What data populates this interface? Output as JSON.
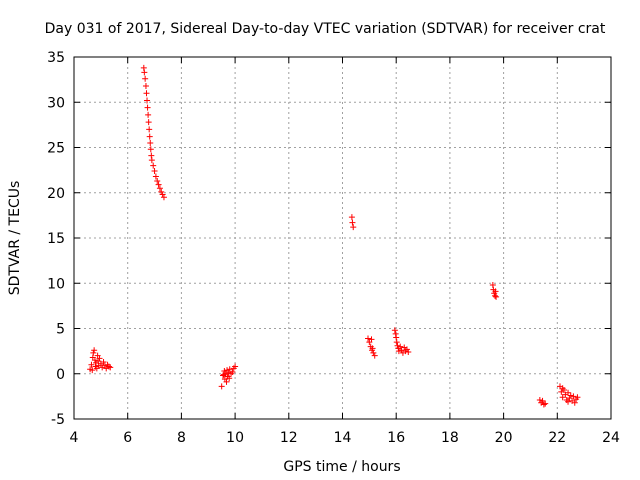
{
  "chart_data": {
    "type": "scatter",
    "title": "Day 031 of 2017, Sidereal Day-to-day VTEC variation (SDTVAR) for receiver crat",
    "xlabel": "GPS time / hours",
    "ylabel": "SDTVAR / TECUs",
    "xlim": [
      4,
      24
    ],
    "ylim": [
      -5,
      35
    ],
    "xticks": [
      4,
      6,
      8,
      10,
      12,
      14,
      16,
      18,
      20,
      22,
      24
    ],
    "yticks": [
      -5,
      0,
      5,
      10,
      15,
      20,
      25,
      30,
      35
    ],
    "grid": true,
    "marker": "+",
    "color": "#ff0000",
    "series": [
      {
        "name": "SDTVAR",
        "points": [
          [
            4.6,
            0.5
          ],
          [
            4.65,
            1.0
          ],
          [
            4.7,
            1.8
          ],
          [
            4.72,
            2.3
          ],
          [
            4.75,
            2.6
          ],
          [
            4.78,
            1.5
          ],
          [
            4.8,
            0.8
          ],
          [
            4.82,
            1.2
          ],
          [
            4.85,
            0.6
          ],
          [
            4.88,
            2.0
          ],
          [
            4.9,
            1.4
          ],
          [
            4.92,
            0.9
          ],
          [
            4.95,
            1.7
          ],
          [
            5.0,
            1.1
          ],
          [
            5.05,
            0.7
          ],
          [
            5.1,
            1.3
          ],
          [
            5.15,
            0.9
          ],
          [
            5.2,
            0.6
          ],
          [
            5.25,
            1.0
          ],
          [
            5.3,
            0.8
          ],
          [
            5.35,
            0.7
          ],
          [
            4.68,
            0.4
          ],
          [
            6.6,
            33.8
          ],
          [
            6.62,
            33.3
          ],
          [
            6.65,
            32.6
          ],
          [
            6.68,
            31.8
          ],
          [
            6.7,
            31.0
          ],
          [
            6.72,
            30.2
          ],
          [
            6.74,
            29.4
          ],
          [
            6.76,
            28.6
          ],
          [
            6.78,
            27.8
          ],
          [
            6.8,
            27.0
          ],
          [
            6.82,
            26.2
          ],
          [
            6.84,
            25.5
          ],
          [
            6.86,
            24.8
          ],
          [
            6.88,
            24.1
          ],
          [
            6.9,
            23.6
          ],
          [
            6.95,
            23.0
          ],
          [
            7.0,
            22.4
          ],
          [
            7.05,
            21.8
          ],
          [
            7.1,
            21.3
          ],
          [
            7.15,
            20.9
          ],
          [
            7.2,
            20.5
          ],
          [
            7.25,
            20.1
          ],
          [
            7.3,
            19.8
          ],
          [
            7.35,
            19.5
          ],
          [
            9.5,
            -1.4
          ],
          [
            9.55,
            -0.2
          ],
          [
            9.6,
            0.3
          ],
          [
            9.62,
            -0.6
          ],
          [
            9.65,
            0.0
          ],
          [
            9.68,
            -0.9
          ],
          [
            9.7,
            0.4
          ],
          [
            9.72,
            -0.3
          ],
          [
            9.75,
            0.1
          ],
          [
            9.78,
            -0.5
          ],
          [
            9.8,
            0.5
          ],
          [
            9.85,
            0.0
          ],
          [
            9.9,
            0.2
          ],
          [
            9.95,
            0.6
          ],
          [
            10.0,
            0.8
          ],
          [
            9.58,
            -0.1
          ],
          [
            14.35,
            17.3
          ],
          [
            14.37,
            16.7
          ],
          [
            14.4,
            16.2
          ],
          [
            14.95,
            3.9
          ],
          [
            15.0,
            3.5
          ],
          [
            15.05,
            3.0
          ],
          [
            15.1,
            2.6
          ],
          [
            15.15,
            2.3
          ],
          [
            15.2,
            2.0
          ],
          [
            15.08,
            3.8
          ],
          [
            15.12,
            2.8
          ],
          [
            15.95,
            4.8
          ],
          [
            15.98,
            4.4
          ],
          [
            16.0,
            4.0
          ],
          [
            16.02,
            3.5
          ],
          [
            16.05,
            3.1
          ],
          [
            16.08,
            2.8
          ],
          [
            16.1,
            2.5
          ],
          [
            16.15,
            3.0
          ],
          [
            16.2,
            2.6
          ],
          [
            16.25,
            2.3
          ],
          [
            16.3,
            2.9
          ],
          [
            16.35,
            2.5
          ],
          [
            16.4,
            2.7
          ],
          [
            16.45,
            2.4
          ],
          [
            19.6,
            9.8
          ],
          [
            19.62,
            9.3
          ],
          [
            19.65,
            8.9
          ],
          [
            19.68,
            8.6
          ],
          [
            19.7,
            9.1
          ],
          [
            19.72,
            8.5
          ],
          [
            21.35,
            -2.9
          ],
          [
            21.4,
            -3.2
          ],
          [
            21.45,
            -3.0
          ],
          [
            21.5,
            -3.4
          ],
          [
            21.55,
            -3.3
          ],
          [
            22.1,
            -1.4
          ],
          [
            22.15,
            -2.0
          ],
          [
            22.2,
            -2.6
          ],
          [
            22.25,
            -1.8
          ],
          [
            22.3,
            -2.3
          ],
          [
            22.35,
            -2.9
          ],
          [
            22.4,
            -2.1
          ],
          [
            22.45,
            -2.7
          ],
          [
            22.5,
            -2.4
          ],
          [
            22.55,
            -3.0
          ],
          [
            22.6,
            -2.5
          ],
          [
            22.65,
            -3.2
          ],
          [
            22.7,
            -2.8
          ],
          [
            22.75,
            -2.6
          ],
          [
            22.2,
            -1.6
          ],
          [
            22.4,
            -3.1
          ]
        ]
      }
    ]
  }
}
